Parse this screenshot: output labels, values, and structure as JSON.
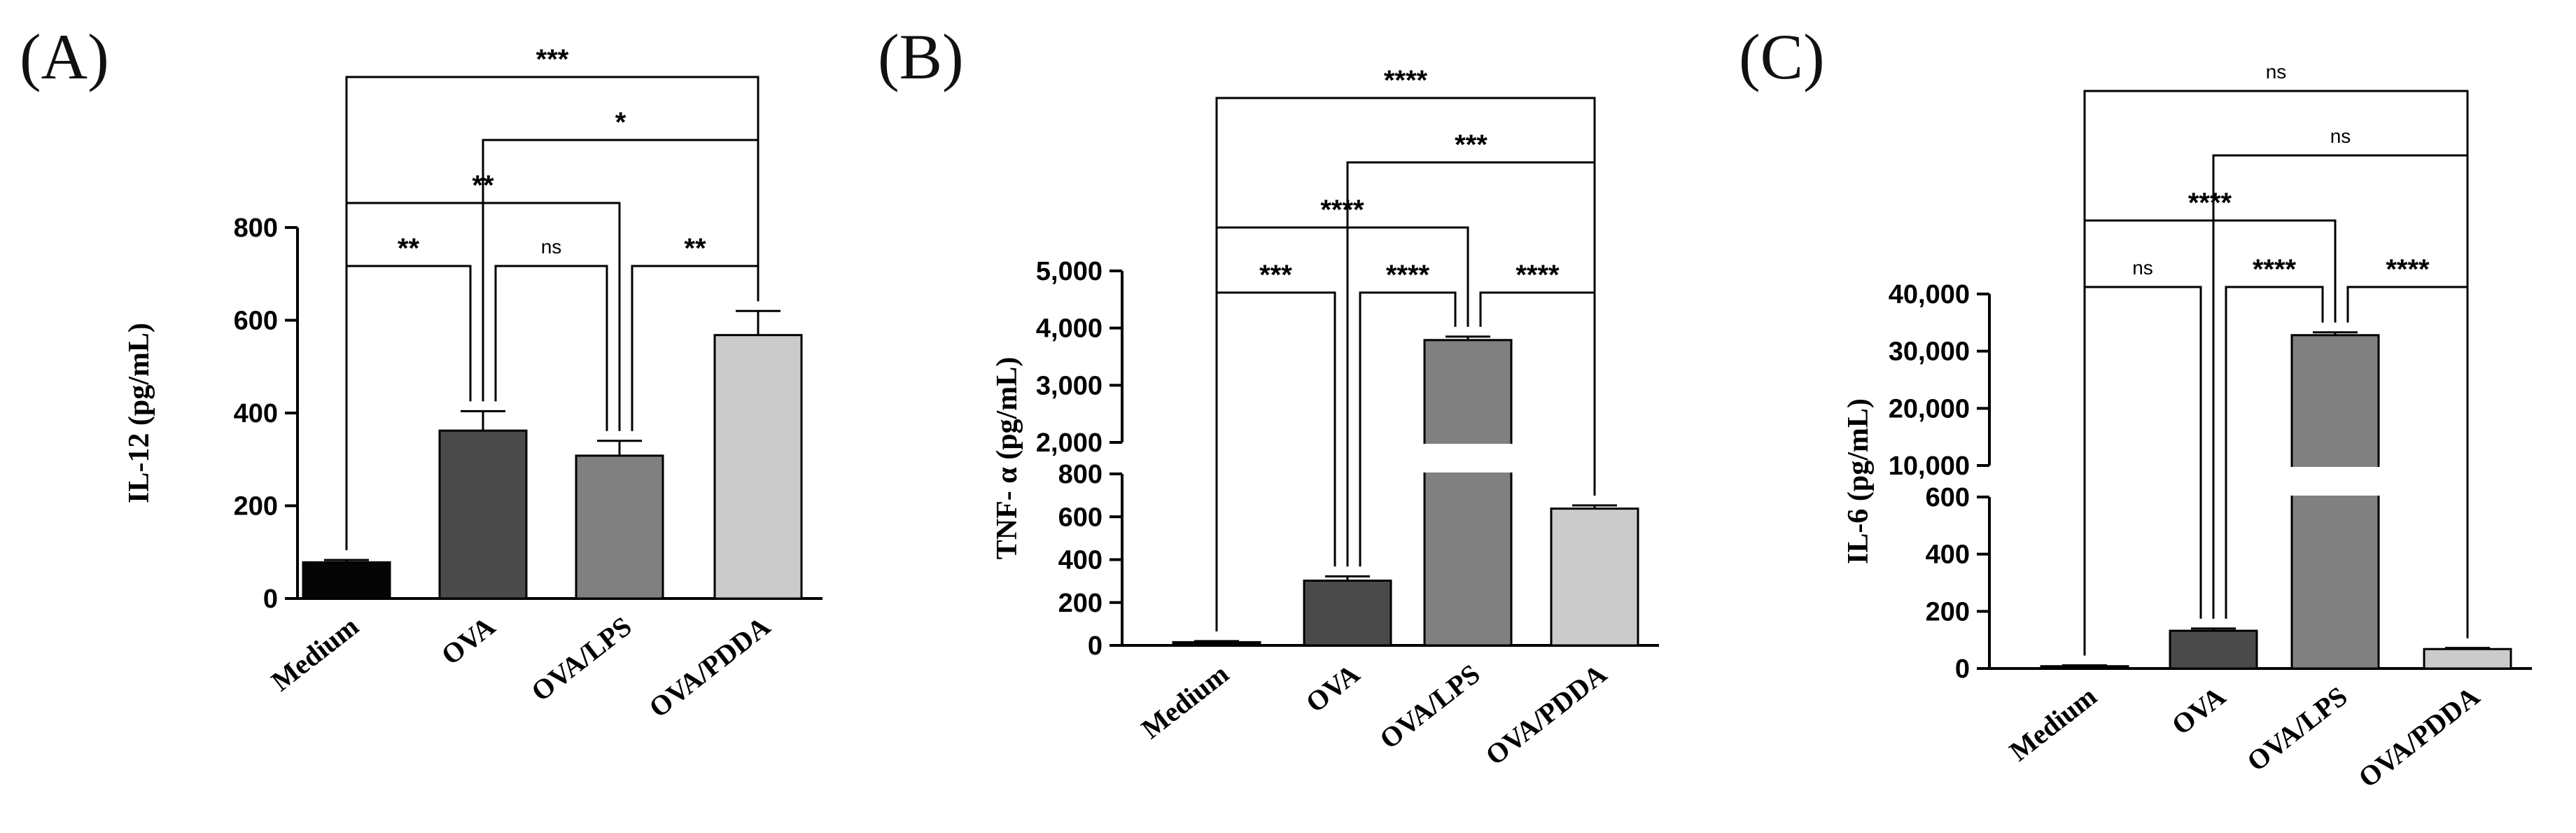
{
  "chart_data": [
    {
      "type": "bar",
      "panel": "(A)",
      "ylabel": "IL-12 (pg/mL)",
      "categories": [
        "Medium",
        "OVA",
        "OVA/LPS",
        "OVA/PDDA"
      ],
      "values": [
        78,
        362,
        308,
        568
      ],
      "errors": [
        5,
        42,
        32,
        52
      ],
      "colors": [
        "#050505",
        "#4a4a4a",
        "#808080",
        "#cbcbcb"
      ],
      "ylim": [
        0,
        800
      ],
      "yticks": [
        0,
        200,
        400,
        600,
        800
      ],
      "ytick_labels": [
        "0",
        "200",
        "400",
        "600",
        "800"
      ],
      "broken_axis": false,
      "comparisons": [
        {
          "from": 0,
          "to": 1,
          "label": "**"
        },
        {
          "from": 1,
          "to": 2,
          "label": "ns"
        },
        {
          "from": 2,
          "to": 3,
          "label": "**"
        },
        {
          "from": 0,
          "to": 2,
          "label": "**"
        },
        {
          "from": 1,
          "to": 3,
          "label": "*"
        },
        {
          "from": 0,
          "to": 3,
          "label": "***"
        }
      ]
    },
    {
      "type": "bar",
      "panel": "(B)",
      "ylabel": "TNF- α (pg/mL)",
      "categories": [
        "Medium",
        "OVA",
        "OVA/LPS",
        "OVA/PDDA"
      ],
      "values": [
        15,
        302,
        3790,
        638
      ],
      "errors": [
        5,
        20,
        60,
        15
      ],
      "colors": [
        "#050505",
        "#4a4a4a",
        "#808080",
        "#cbcbcb"
      ],
      "broken_axis": true,
      "lower_ylim": [
        0,
        800
      ],
      "upper_ylim": [
        2000,
        5000
      ],
      "yticks_lower": [
        0,
        200,
        400,
        600,
        800
      ],
      "ytick_labels_lower": [
        "0",
        "200",
        "400",
        "600",
        "800"
      ],
      "yticks_upper": [
        2000,
        3000,
        4000,
        5000
      ],
      "ytick_labels_upper": [
        "2,000",
        "3,000",
        "4,000",
        "5,000"
      ],
      "comparisons": [
        {
          "from": 0,
          "to": 1,
          "label": "***"
        },
        {
          "from": 1,
          "to": 2,
          "label": "****"
        },
        {
          "from": 2,
          "to": 3,
          "label": "****"
        },
        {
          "from": 0,
          "to": 2,
          "label": "****"
        },
        {
          "from": 1,
          "to": 3,
          "label": "***"
        },
        {
          "from": 0,
          "to": 3,
          "label": "****"
        }
      ]
    },
    {
      "type": "bar",
      "panel": "(C)",
      "ylabel": "IL-6 (pg/mL)",
      "categories": [
        "Medium",
        "OVA",
        "OVA/LPS",
        "OVA/PDDA"
      ],
      "values": [
        8,
        132,
        32800,
        68
      ],
      "errors": [
        3,
        8,
        500,
        4
      ],
      "colors": [
        "#050505",
        "#4a4a4a",
        "#808080",
        "#cbcbcb"
      ],
      "broken_axis": true,
      "lower_ylim": [
        0,
        600
      ],
      "upper_ylim": [
        10000,
        40000
      ],
      "yticks_lower": [
        0,
        200,
        400,
        600
      ],
      "ytick_labels_lower": [
        "0",
        "200",
        "400",
        "600"
      ],
      "yticks_upper": [
        10000,
        20000,
        30000,
        40000
      ],
      "ytick_labels_upper": [
        "10,000",
        "20,000",
        "30,000",
        "40,000"
      ],
      "comparisons": [
        {
          "from": 0,
          "to": 1,
          "label": "ns"
        },
        {
          "from": 1,
          "to": 2,
          "label": "****"
        },
        {
          "from": 2,
          "to": 3,
          "label": "****"
        },
        {
          "from": 0,
          "to": 2,
          "label": "****"
        },
        {
          "from": 1,
          "to": 3,
          "label": "ns"
        },
        {
          "from": 0,
          "to": 3,
          "label": "ns"
        }
      ]
    }
  ]
}
